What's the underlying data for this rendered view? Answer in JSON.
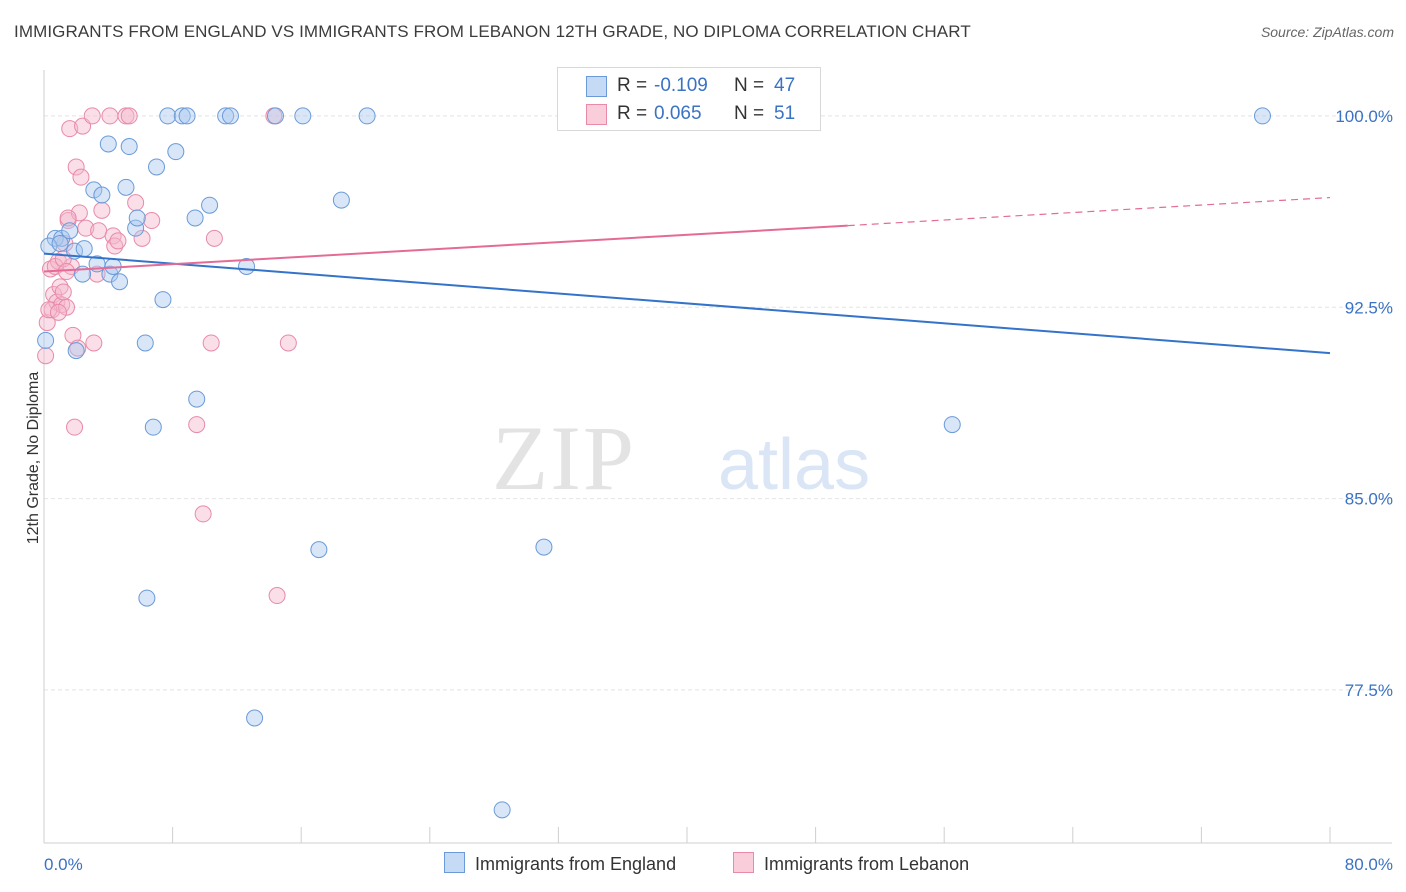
{
  "title": "IMMIGRANTS FROM ENGLAND VS IMMIGRANTS FROM LEBANON 12TH GRADE, NO DIPLOMA CORRELATION CHART",
  "source": "Source: ZipAtlas.com",
  "watermark": {
    "zip": "ZIP",
    "atlas": "atlas"
  },
  "legend": {
    "england": {
      "r_label": "R =",
      "r_value": "-0.109",
      "n_label": "N =",
      "n_value": "47"
    },
    "lebanon": {
      "r_label": "R =",
      "r_value": "0.065",
      "n_label": "N =",
      "n_value": "51"
    }
  },
  "colors": {
    "england_fill": "#a9c8f0",
    "england_stroke": "#6a9ad8",
    "england_line": "#3373c9",
    "lebanon_fill": "#f5b8cb",
    "lebanon_stroke": "#e88aa8",
    "lebanon_line": "#e46b95",
    "tick_label": "#3a72c4",
    "grid": "#e4e4e4"
  },
  "chart_data": {
    "type": "scatter",
    "title": "IMMIGRANTS FROM ENGLAND VS IMMIGRANTS FROM LEBANON 12TH GRADE, NO DIPLOMA CORRELATION CHART",
    "xlabel": "",
    "ylabel": "12th Grade, No Diploma",
    "xlim": [
      0,
      80
    ],
    "ylim": [
      71.5,
      101.8
    ],
    "x_tick_labels": [
      "0.0%",
      "80.0%"
    ],
    "y_ticks": [
      100.0,
      92.5,
      85.0,
      77.5
    ],
    "y_tick_labels": [
      "100.0%",
      "92.5%",
      "85.0%",
      "77.5%"
    ],
    "grid": true,
    "legend_position": "bottom",
    "series": [
      {
        "name": "Immigrants from England",
        "points": [
          [
            0.1,
            91.2
          ],
          [
            0.7,
            95.2
          ],
          [
            1.1,
            95.2
          ],
          [
            1.6,
            95.5
          ],
          [
            1.9,
            94.7
          ],
          [
            2.4,
            93.8
          ],
          [
            2.5,
            94.8
          ],
          [
            3.1,
            97.1
          ],
          [
            3.3,
            94.2
          ],
          [
            3.6,
            96.9
          ],
          [
            4.0,
            98.9
          ],
          [
            4.1,
            93.8
          ],
          [
            4.3,
            94.1
          ],
          [
            4.7,
            93.5
          ],
          [
            5.1,
            97.2
          ],
          [
            5.3,
            98.8
          ],
          [
            5.7,
            95.6
          ],
          [
            5.8,
            96.0
          ],
          [
            6.3,
            91.1
          ],
          [
            6.4,
            81.1
          ],
          [
            6.8,
            87.8
          ],
          [
            7.0,
            98.0
          ],
          [
            7.4,
            92.8
          ],
          [
            7.7,
            100.0
          ],
          [
            8.2,
            98.6
          ],
          [
            8.6,
            100.0
          ],
          [
            8.9,
            100.0
          ],
          [
            9.4,
            96.0
          ],
          [
            9.5,
            88.9
          ],
          [
            10.3,
            96.5
          ],
          [
            11.3,
            100.0
          ],
          [
            11.6,
            100.0
          ],
          [
            12.6,
            94.1
          ],
          [
            13.1,
            76.4
          ],
          [
            14.4,
            100.0
          ],
          [
            16.1,
            100.0
          ],
          [
            17.1,
            83.0
          ],
          [
            18.5,
            96.7
          ],
          [
            20.1,
            100.0
          ],
          [
            28.5,
            72.8
          ],
          [
            31.1,
            83.1
          ],
          [
            32.9,
            100.0
          ],
          [
            56.5,
            87.9
          ],
          [
            75.8,
            100.0
          ],
          [
            0.3,
            94.9
          ],
          [
            1.0,
            95.0
          ],
          [
            2.0,
            90.8
          ]
        ]
      },
      {
        "name": "Immigrants from Lebanon",
        "points": [
          [
            0.1,
            90.6
          ],
          [
            0.2,
            91.9
          ],
          [
            0.4,
            94.0
          ],
          [
            0.5,
            92.4
          ],
          [
            0.6,
            93.0
          ],
          [
            0.8,
            92.7
          ],
          [
            0.9,
            94.3
          ],
          [
            1.0,
            93.3
          ],
          [
            1.1,
            92.6
          ],
          [
            1.2,
            93.1
          ],
          [
            1.3,
            95.0
          ],
          [
            1.4,
            92.5
          ],
          [
            1.5,
            95.9
          ],
          [
            1.6,
            99.5
          ],
          [
            1.7,
            94.1
          ],
          [
            1.8,
            91.4
          ],
          [
            1.9,
            87.8
          ],
          [
            2.0,
            98.0
          ],
          [
            2.1,
            90.9
          ],
          [
            2.2,
            96.2
          ],
          [
            2.3,
            97.6
          ],
          [
            2.4,
            99.6
          ],
          [
            2.6,
            95.6
          ],
          [
            3.0,
            100.0
          ],
          [
            3.1,
            91.1
          ],
          [
            3.3,
            93.8
          ],
          [
            3.4,
            95.5
          ],
          [
            3.6,
            96.3
          ],
          [
            4.1,
            100.0
          ],
          [
            4.3,
            95.3
          ],
          [
            4.4,
            94.9
          ],
          [
            4.6,
            95.1
          ],
          [
            5.1,
            100.0
          ],
          [
            5.3,
            100.0
          ],
          [
            5.7,
            96.6
          ],
          [
            6.1,
            95.2
          ],
          [
            6.7,
            95.9
          ],
          [
            9.5,
            87.9
          ],
          [
            9.9,
            84.4
          ],
          [
            10.4,
            91.1
          ],
          [
            10.6,
            95.2
          ],
          [
            14.3,
            100.0
          ],
          [
            14.5,
            81.2
          ],
          [
            15.2,
            91.1
          ],
          [
            42.9,
            100.0
          ],
          [
            0.3,
            92.4
          ],
          [
            0.7,
            94.1
          ],
          [
            0.9,
            92.3
          ],
          [
            1.2,
            94.4
          ],
          [
            1.4,
            93.9
          ],
          [
            1.5,
            96.0
          ]
        ]
      }
    ],
    "trend_lines": [
      {
        "name": "Immigrants from England",
        "x": [
          0,
          80
        ],
        "y": [
          94.6,
          90.7
        ]
      },
      {
        "name": "Immigrants from Lebanon",
        "x": [
          0,
          50,
          80
        ],
        "y": [
          93.9,
          95.7,
          96.8
        ]
      }
    ]
  }
}
